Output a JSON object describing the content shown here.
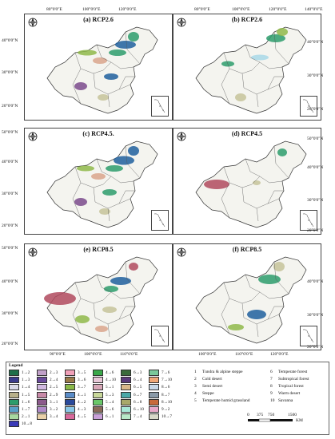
{
  "axes": {
    "top_lon": [
      "80°0'0\"E",
      "100°0'0\"E",
      "120°0'0\"E",
      "140°0'0\"E"
    ],
    "bottom_lon": [
      "90°0'0\"E",
      "100°0'0\"E",
      "110°0'0\"E",
      "120°0'0\"E"
    ],
    "lat_row1_left": [
      "40°0'0\"N",
      "30°0'0\"N",
      "20°0'0\"N"
    ],
    "lat_row1_right": [
      "40°0'0\"N",
      "30°0'0\"N",
      "20°0'0\"N"
    ],
    "lat_row2_left": [
      "50°0'0\"N",
      "40°0'0\"N",
      "30°0'0\"N",
      "20°0'0\"N"
    ],
    "lat_row2_right": [
      "50°0'0\"N",
      "40°0'0\"N",
      "30°0'0\"N",
      "20°0'0\"N"
    ],
    "lat_row3_left": [
      "50°0'0\"N",
      "40°0'0\"N",
      "30°0'0\"N",
      "20°0'0\"N"
    ],
    "lat_row3_right": [
      "40°0'0\"N",
      "30°0'0\"N",
      "20°0'0\"N"
    ]
  },
  "panels": [
    {
      "title": "(a) RCP2.6",
      "colors": [
        "#1f5f9e",
        "#2d9c6c",
        "#8fb84a",
        "#d9a48c",
        "#7a4a8c",
        "#c6c39a"
      ]
    },
    {
      "title": "(b) RCP2.6",
      "colors": [
        "#2d9c6c",
        "#8fb84a",
        "#a8d8e8",
        "#c6c39a"
      ]
    },
    {
      "title": "(c) RCP4.5.",
      "colors": [
        "#1f5f9e",
        "#2d9c6c",
        "#8fb84a",
        "#d9a48c",
        "#7a4a8c",
        "#c6c39a"
      ]
    },
    {
      "title": "(d) RCP4.5",
      "colors": [
        "#b04a5e",
        "#2d9c6c",
        "#c6c39a"
      ]
    },
    {
      "title": "(e) RCP8.5",
      "colors": [
        "#b04a5e",
        "#1f5f9e",
        "#2d9c6c",
        "#8fb84a",
        "#d9a48c",
        "#c6c39a"
      ]
    },
    {
      "title": "(f) RCP8.5",
      "colors": [
        "#2d9c6c",
        "#1f5f9e",
        "#8fb84a",
        "#c6c39a",
        "#a8d8e8"
      ]
    }
  ],
  "legend": {
    "title": "Legend",
    "items": [
      {
        "label": "1→2",
        "color": "#1f6e4a"
      },
      {
        "label": "1→3",
        "color": "#3a3a8c"
      },
      {
        "label": "1→4",
        "color": "#d8d8e8"
      },
      {
        "label": "1→5",
        "color": "#b8b08a"
      },
      {
        "label": "1→6",
        "color": "#2d9c6c"
      },
      {
        "label": "1→7",
        "color": "#5aa0c8"
      },
      {
        "label": "2→1",
        "color": "#a8d8a0"
      },
      {
        "label": "10→8",
        "color": "#3a3ab8"
      },
      {
        "label": "2→3",
        "color": "#c0a0c8"
      },
      {
        "label": "2→4",
        "color": "#6a4a9c"
      },
      {
        "label": "2→5",
        "color": "#d0b8e0"
      },
      {
        "label": "2→9",
        "color": "#c88aa8"
      },
      {
        "label": "3→1",
        "color": "#8c5a8c"
      },
      {
        "label": "3→2",
        "color": "#b08ac8"
      },
      {
        "label": "3→4",
        "color": "#e8d0a8"
      },
      {
        "label": "3→5",
        "color": "#f0a0b8"
      },
      {
        "label": "3→6",
        "color": "#9a7a4a"
      },
      {
        "label": "3→7",
        "color": "#8ab848"
      },
      {
        "label": "4→1",
        "color": "#5a8cc8"
      },
      {
        "label": "4→2",
        "color": "#2a4a9c"
      },
      {
        "label": "4→3",
        "color": "#8ac8e8"
      },
      {
        "label": "4→5",
        "color": "#d86a9c"
      },
      {
        "label": "4→6",
        "color": "#3aa84a"
      },
      {
        "label": "4→10",
        "color": "#e8c8d8"
      },
      {
        "label": "5→1",
        "color": "#d8a8b8"
      },
      {
        "label": "5→3",
        "color": "#c8d89a"
      },
      {
        "label": "5→4",
        "color": "#6ac86a"
      },
      {
        "label": "5→6",
        "color": "#8a6a5a"
      },
      {
        "label": "6→1",
        "color": "#c8a0d8"
      },
      {
        "label": "6→3",
        "color": "#3a6a3a"
      },
      {
        "label": "6→4",
        "color": "#5a3a7a"
      },
      {
        "label": "6→5",
        "color": "#d8b88a"
      },
      {
        "label": "6→7",
        "color": "#4aa8a8"
      },
      {
        "label": "6→8",
        "color": "#a8a86a"
      },
      {
        "label": "6→10",
        "color": "#a8e8d8"
      },
      {
        "label": "7→4",
        "color": "#b8e8c8"
      },
      {
        "label": "7→6",
        "color": "#7ac89a"
      },
      {
        "label": "7→10",
        "color": "#f0a878"
      },
      {
        "label": "8→6",
        "color": "#c8d8e8"
      },
      {
        "label": "8→7",
        "color": "#8a9aa8"
      },
      {
        "label": "8→10",
        "color": "#c86a3a"
      },
      {
        "label": "9→2",
        "color": "#e8a8c8"
      },
      {
        "label": "10→7",
        "color": "#d8d8c8"
      }
    ],
    "vegetation": [
      {
        "code": "1",
        "name": "Tundra & alpine steppe"
      },
      {
        "code": "2",
        "name": "Cold desert"
      },
      {
        "code": "3",
        "name": "Semi desert"
      },
      {
        "code": "4",
        "name": "Steppe"
      },
      {
        "code": "5",
        "name": "Temperate humid grassland"
      },
      {
        "code": "6",
        "name": "Temperate forest"
      },
      {
        "code": "7",
        "name": "Subtropical forest"
      },
      {
        "code": "8",
        "name": "Tropical forest"
      },
      {
        "code": "9",
        "name": "Warm desert"
      },
      {
        "code": "10",
        "name": "Savanna"
      }
    ],
    "scale": {
      "ticks": [
        "0",
        "375",
        "750",
        "1500"
      ],
      "unit": "KM"
    }
  }
}
